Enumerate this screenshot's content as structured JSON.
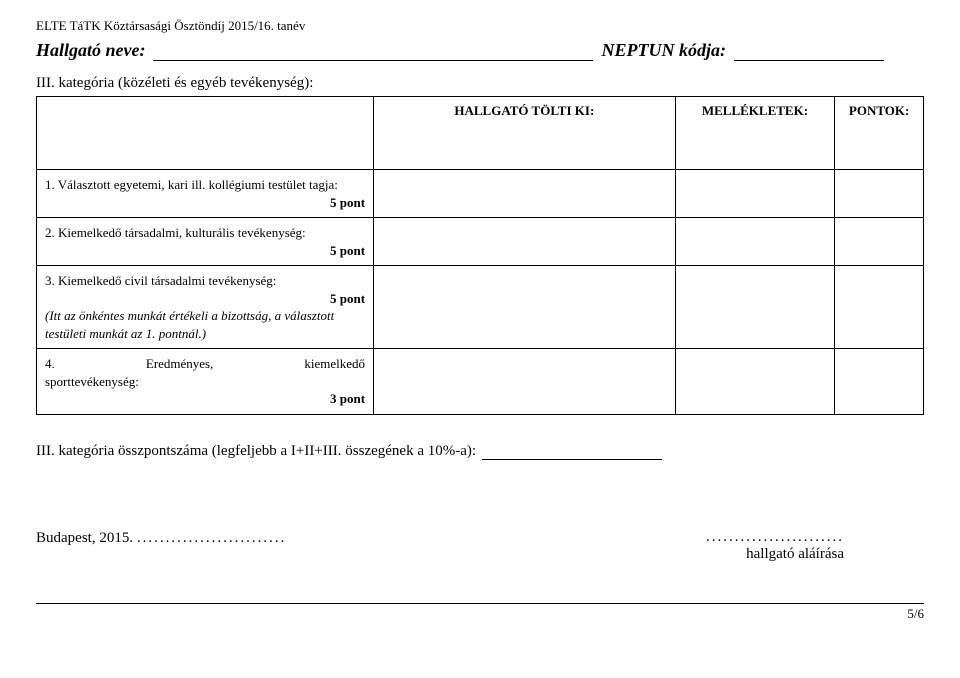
{
  "header": {
    "top": "ELTE TáTK Köztársasági Ösztöndíj 2015/16. tanév"
  },
  "nameRow": {
    "nameLabel": "Hallgató neve:",
    "neptunLabel": "NEPTUN kódja:"
  },
  "sectionTitle": "III. kategória (közéleti és egyéb tevékenység):",
  "tableHeaders": {
    "desc": "",
    "fill": "HALLGATÓ TÖLTI KI:",
    "mell": "MELLÉKLETEK:",
    "pont": "PONTOK:"
  },
  "rows": {
    "r1": {
      "text": "1. Választott egyetemi, kari ill. kollégiumi testület tagja:",
      "points": "5 pont"
    },
    "r2": {
      "text": "2. Kiemelkedő társadalmi, kulturális tevékenység:",
      "points": "5 pont"
    },
    "r3": {
      "text": "3. Kiemelkedő civil társadalmi tevékenység:",
      "points": "5 pont",
      "note": "(Itt az önkéntes munkát értékeli a bizottság, a választott testületi munkát az 1. pontnál.)"
    },
    "r4": {
      "left": "4.",
      "mid": "Eredményes,",
      "right": "kiemelkedő",
      "line2": "sporttevékenység:",
      "points": "3 pont"
    }
  },
  "summary": {
    "text": "III. kategória összpontszáma (legfeljebb a I+II+III. összegének a 10%-a):"
  },
  "budapest": {
    "label": "Budapest, 2015."
  },
  "signature": {
    "label": "hallgató aláírása"
  },
  "footer": {
    "pageno": "5/6"
  }
}
